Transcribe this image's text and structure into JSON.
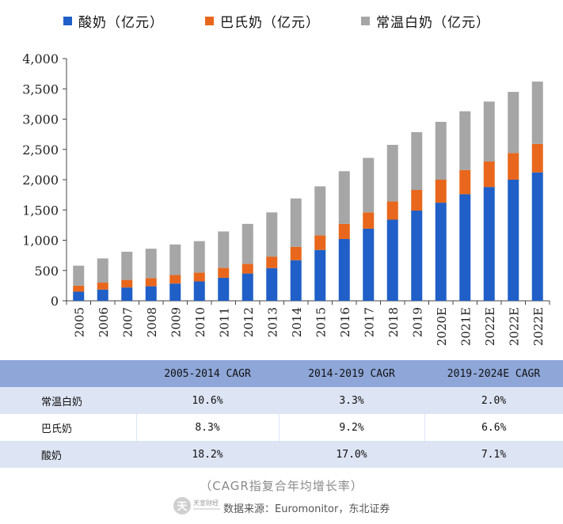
{
  "chart_data": {
    "type": "bar",
    "stacked": true,
    "categories": [
      "2005",
      "2006",
      "2007",
      "2008",
      "2009",
      "2010",
      "2011",
      "2012",
      "2013",
      "2014",
      "2015",
      "2016",
      "2017",
      "2018",
      "2019",
      "2020E",
      "2021E",
      "2022E",
      "2022E",
      "2022E"
    ],
    "series": [
      {
        "name": "酸奶（亿元）",
        "color": "#1f5fc7",
        "values": [
          150,
          185,
          220,
          240,
          285,
          320,
          380,
          450,
          540,
          670,
          840,
          1020,
          1190,
          1340,
          1490,
          1620,
          1760,
          1880,
          2000,
          2120
        ]
      },
      {
        "name": "巴氏奶（亿元）",
        "color": "#e8671c",
        "values": [
          100,
          115,
          125,
          135,
          140,
          145,
          165,
          160,
          190,
          220,
          240,
          250,
          270,
          300,
          340,
          380,
          400,
          420,
          440,
          470
        ]
      },
      {
        "name": "常温白奶（亿元）",
        "color": "#a6a6a6",
        "values": [
          330,
          400,
          465,
          485,
          505,
          520,
          600,
          660,
          730,
          800,
          810,
          870,
          900,
          935,
          955,
          955,
          970,
          990,
          1010,
          1030
        ]
      }
    ],
    "ylim": [
      0,
      4000
    ],
    "yticks": [
      "0",
      "500",
      "1,000",
      "1,500",
      "2,000",
      "2,500",
      "3,000",
      "3,500",
      "4,000"
    ],
    "legend_position": "top"
  },
  "table": {
    "headers": [
      "",
      "2005-2014 CAGR",
      "2014-2019 CAGR",
      "2019-2024E CAGR"
    ],
    "rows": [
      {
        "label": "常温白奶",
        "values": [
          "10.6%",
          "3.3%",
          "2.0%"
        ]
      },
      {
        "label": "巴氏奶",
        "values": [
          "8.3%",
          "9.2%",
          "6.6%"
        ]
      },
      {
        "label": "酸奶",
        "values": [
          "18.2%",
          "17.0%",
          "7.1%"
        ]
      }
    ]
  },
  "note": "（CAGR指复合年均增长率）",
  "source": "数据来源：Euromonitor，东北证券",
  "logo": {
    "text": "天宣财经"
  }
}
